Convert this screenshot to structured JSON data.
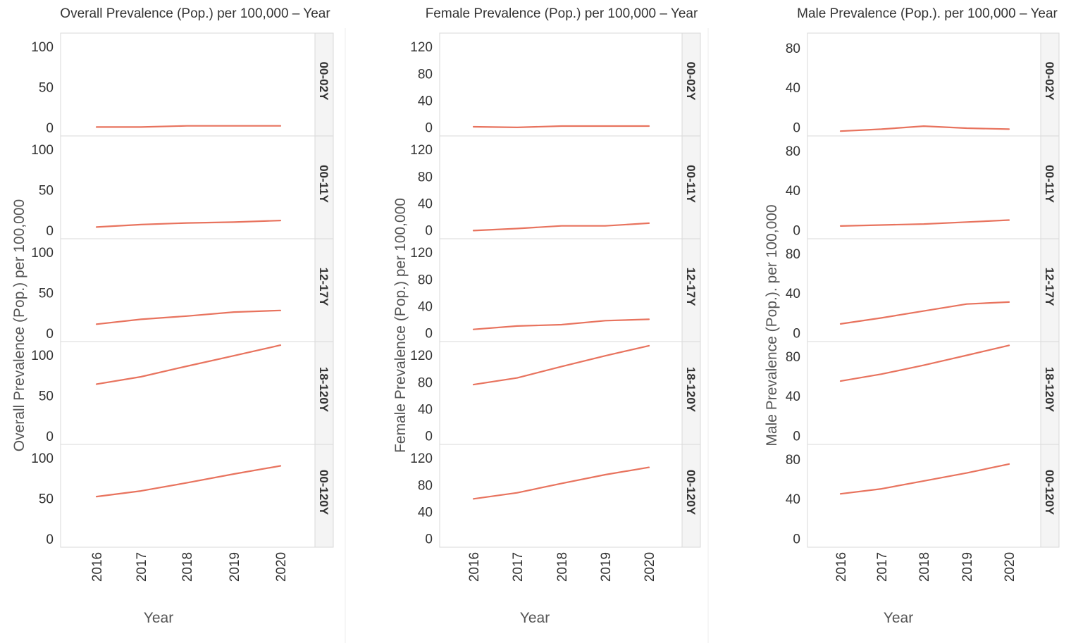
{
  "chart_data": [
    {
      "type": "line",
      "title": "Overall Prevalence (Pop.) per 100,000 – Year",
      "xlabel": "Year",
      "ylabel": "Overall Prevalence (Pop.) per 100,000",
      "x": [
        "2016",
        "2017",
        "2018",
        "2019",
        "2020"
      ],
      "yticks": [
        0,
        50,
        100
      ],
      "ylim": [
        -7,
        113
      ],
      "line_color": "#e8735e",
      "panels": [
        {
          "label": "00-02Y",
          "values": [
            0.5,
            0.5,
            2,
            2,
            2
          ]
        },
        {
          "label": "00-11Y",
          "values": [
            4,
            7,
            9,
            10,
            12
          ]
        },
        {
          "label": "12-17Y",
          "values": [
            11,
            17,
            21,
            26,
            28
          ]
        },
        {
          "label": "18-120Y",
          "values": [
            64,
            73,
            86,
            99,
            112
          ]
        },
        {
          "label": "00-120Y",
          "values": [
            52,
            59,
            69,
            80,
            90
          ]
        }
      ]
    },
    {
      "type": "line",
      "title": "Female Prevalence (Pop.) per 100,000 – Year",
      "xlabel": "Year",
      "ylabel": "Female Prevalence (Pop.) per 100,000",
      "x": [
        "2016",
        "2017",
        "2018",
        "2019",
        "2020"
      ],
      "yticks": [
        0,
        40,
        80,
        120
      ],
      "ylim": [
        -9,
        136
      ],
      "line_color": "#e8735e",
      "panels": [
        {
          "label": "00-02Y",
          "values": [
            0.5,
            -0.5,
            1.5,
            1.5,
            1.5
          ]
        },
        {
          "label": "00-11Y",
          "values": [
            -1,
            2,
            6,
            6,
            10
          ]
        },
        {
          "label": "12-17Y",
          "values": [
            5,
            10,
            12,
            18,
            20
          ]
        },
        {
          "label": "18-120Y",
          "values": [
            76,
            86,
            103,
            119,
            134
          ]
        },
        {
          "label": "00-120Y",
          "values": [
            59,
            68,
            82,
            95,
            106
          ]
        }
      ]
    },
    {
      "type": "line",
      "title": "Male Prevalence (Pop.). per 100,000 – Year",
      "xlabel": "Year",
      "ylabel": "Male Prevalence (Pop.). per 100,000",
      "x": [
        "2016",
        "2017",
        "2018",
        "2019",
        "2020"
      ],
      "yticks": [
        0,
        40,
        80
      ],
      "ylim": [
        -6,
        92
      ],
      "line_color": "#e8735e",
      "panels": [
        {
          "label": "00-02Y",
          "values": [
            -4,
            -2,
            1,
            -1,
            -2
          ]
        },
        {
          "label": "00-11Y",
          "values": [
            4,
            5,
            6,
            8,
            10
          ]
        },
        {
          "label": "12-17Y",
          "values": [
            9,
            15,
            22,
            29,
            31
          ]
        },
        {
          "label": "18-120Y",
          "values": [
            55,
            62,
            71,
            81,
            91
          ]
        },
        {
          "label": "00-120Y",
          "values": [
            45,
            50,
            58,
            66,
            75
          ]
        }
      ]
    }
  ]
}
